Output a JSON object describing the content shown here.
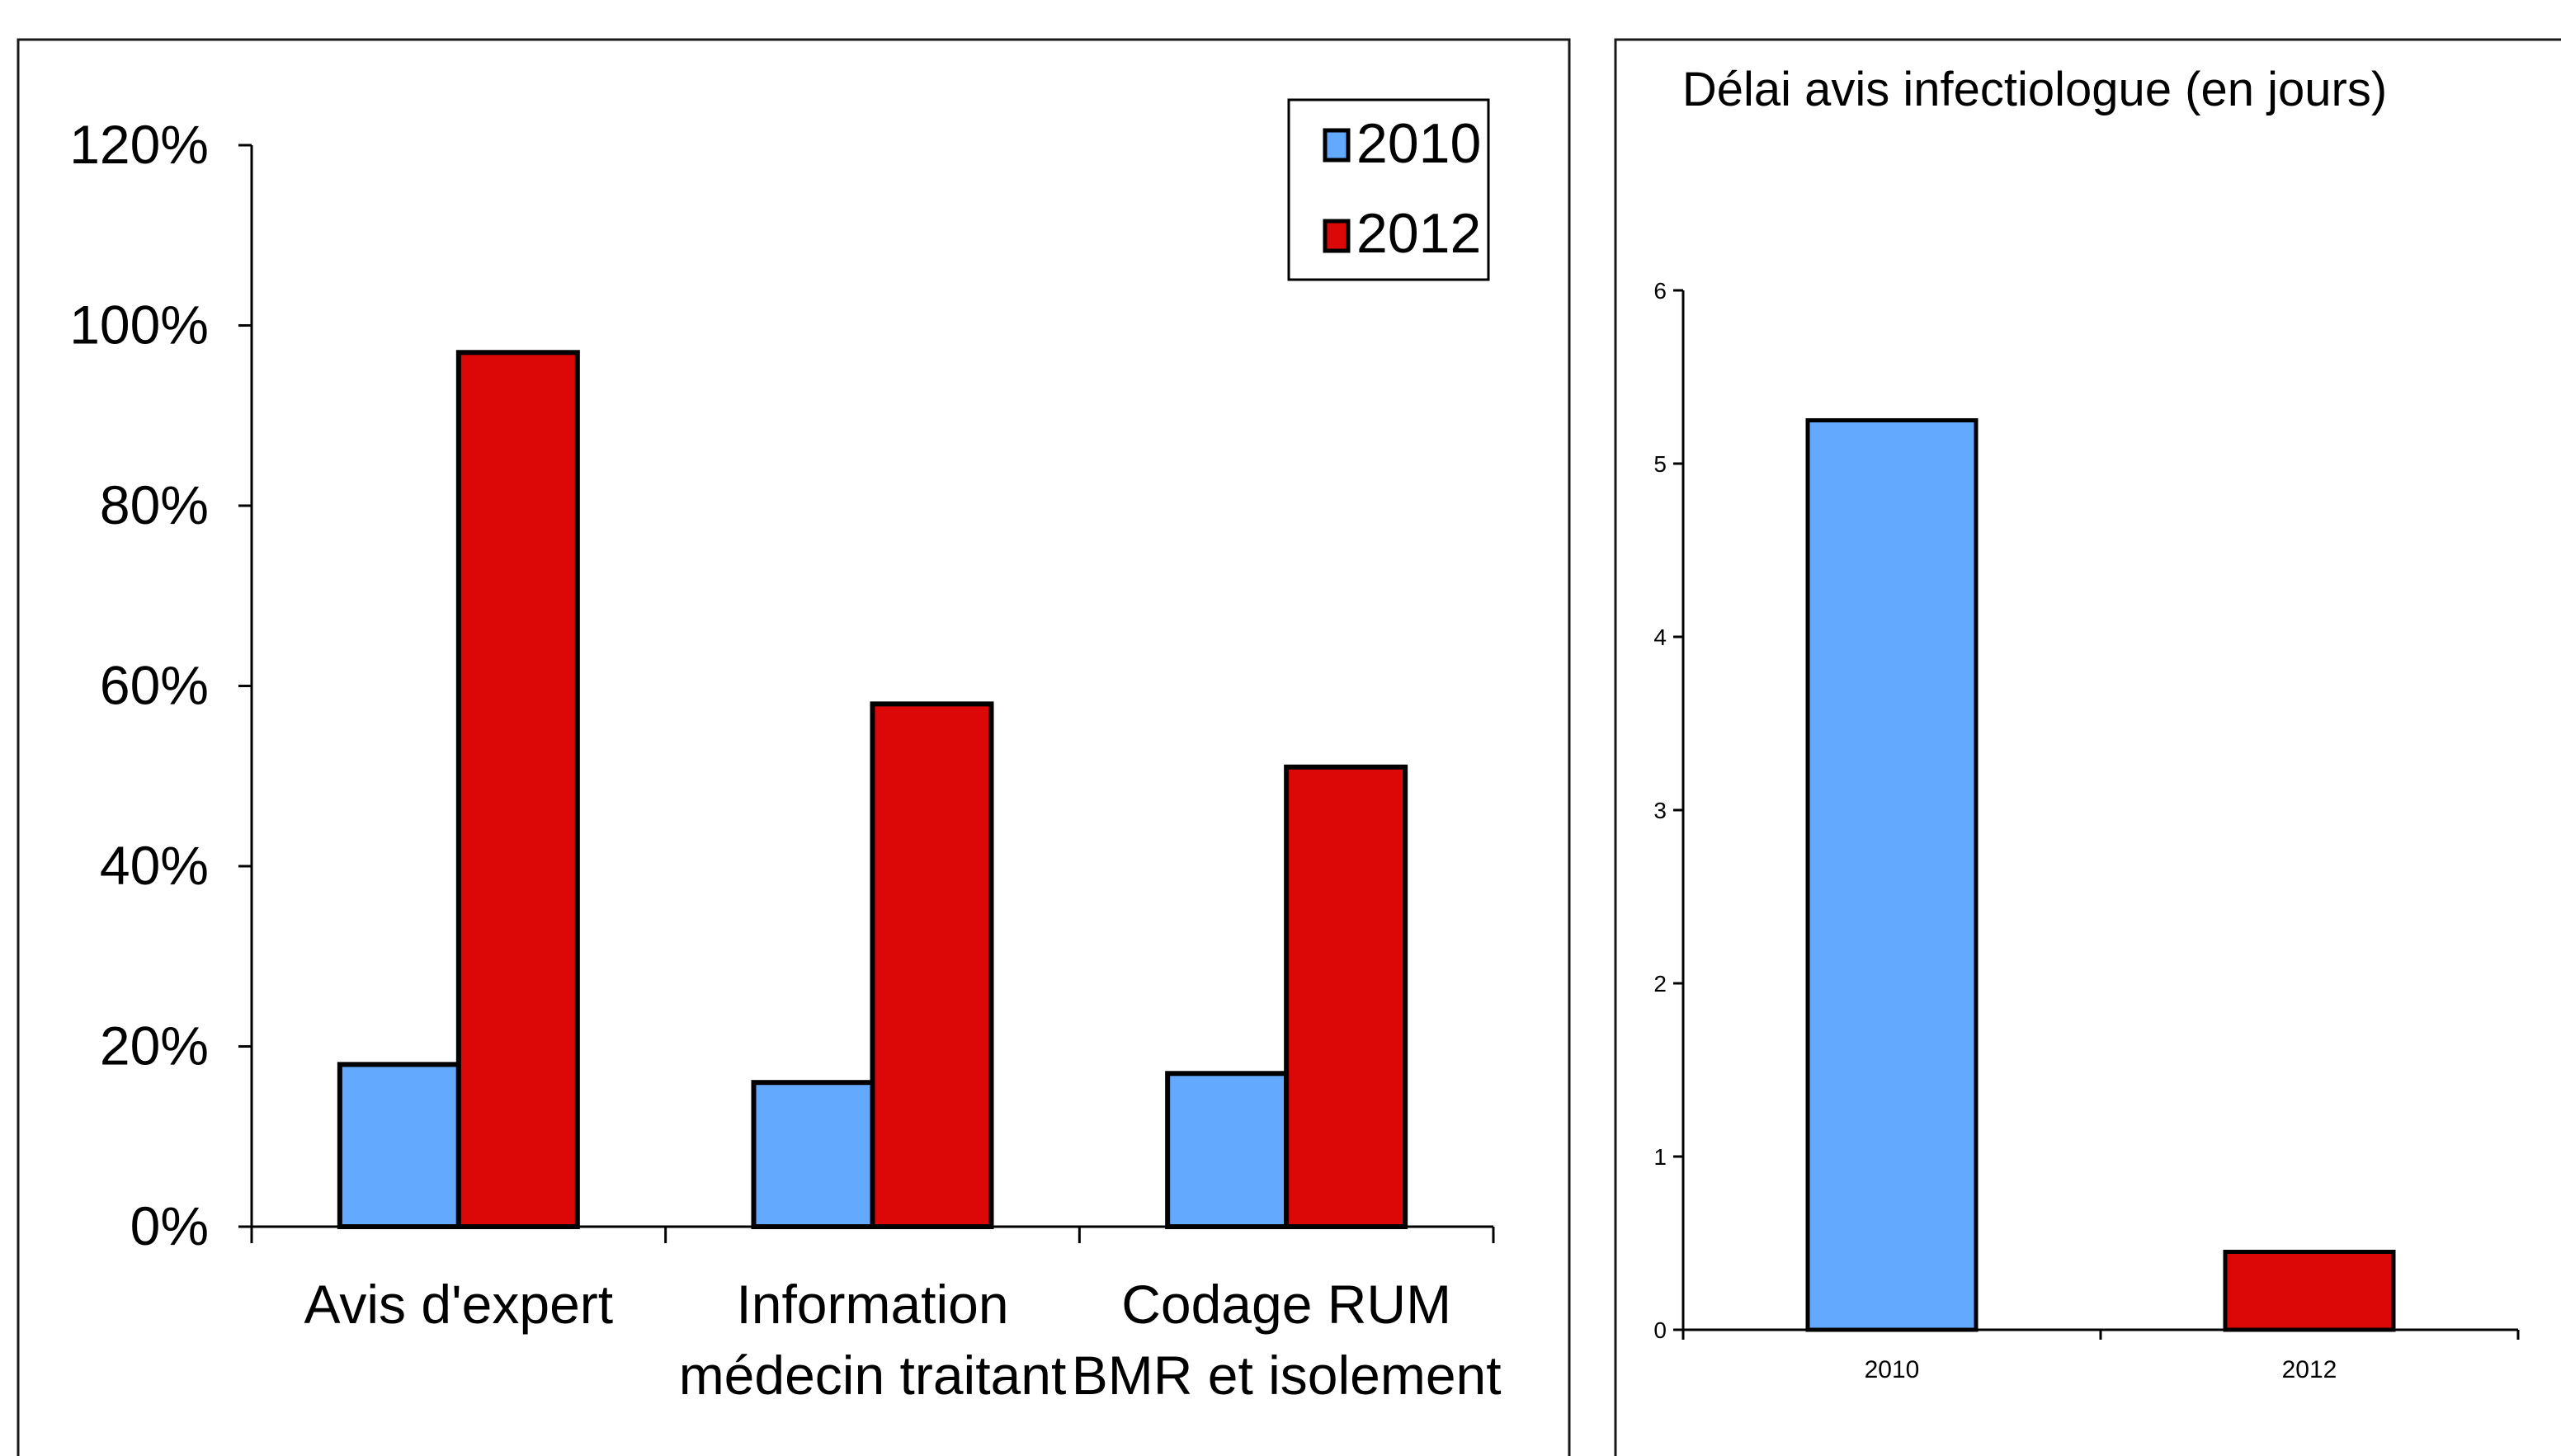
{
  "colors": {
    "series_2010": "#63A9FE",
    "series_2012": "#DC0707"
  },
  "chart_data": [
    {
      "type": "bar",
      "title": "",
      "xlabel": "",
      "ylabel": "",
      "categories": [
        [
          "Avis d'expert"
        ],
        [
          "Information",
          "médecin traitant"
        ],
        [
          "Codage RUM",
          "BMR et isolement"
        ]
      ],
      "series": [
        {
          "name": "2010",
          "values": [
            18,
            16,
            17
          ]
        },
        {
          "name": "2012",
          "values": [
            97,
            58,
            51
          ]
        }
      ],
      "ylim": [
        0,
        120
      ],
      "yticks": [
        "0%",
        "20%",
        "40%",
        "60%",
        "80%",
        "100%",
        "120%"
      ],
      "legend": {
        "placement": "top-right",
        "entries": [
          "2010",
          "2012"
        ]
      },
      "grid": false
    },
    {
      "type": "bar",
      "title": "Délai avis infectiologue (en jours)",
      "xlabel": "",
      "ylabel": "",
      "categories": [
        "2010",
        "2012"
      ],
      "series": [
        {
          "values": [
            5.25,
            0.45
          ]
        }
      ],
      "ylim": [
        0,
        6
      ],
      "yticks": [
        "0",
        "1",
        "2",
        "3",
        "4",
        "5",
        "6"
      ],
      "legend": null,
      "grid": false
    }
  ]
}
